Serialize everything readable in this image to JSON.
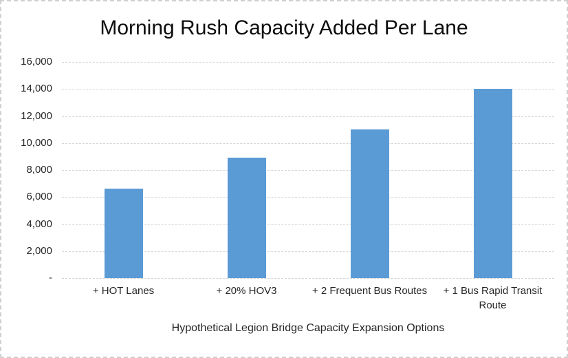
{
  "chart_data": {
    "type": "bar",
    "title": "Morning Rush Capacity Added Per Lane",
    "categories": [
      "+ HOT Lanes",
      "+ 20% HOV3",
      "+ 2 Frequent Bus Routes",
      "+ 1 Bus Rapid Transit Route"
    ],
    "values": [
      6600,
      8900,
      11000,
      14000
    ],
    "xlabel": "Hypothetical Legion Bridge Capacity Expansion Options",
    "ylabel": "",
    "ylim": [
      0,
      16000
    ],
    "ytick_step": 2000,
    "yticks": [
      {
        "value": 16000,
        "label": "16,000"
      },
      {
        "value": 14000,
        "label": "14,000"
      },
      {
        "value": 12000,
        "label": "12,000"
      },
      {
        "value": 10000,
        "label": "10,000"
      },
      {
        "value": 8000,
        "label": "8,000"
      },
      {
        "value": 6000,
        "label": "6,000"
      },
      {
        "value": 4000,
        "label": "4,000"
      },
      {
        "value": 2000,
        "label": "2,000"
      },
      {
        "value": 0,
        "label": "-"
      }
    ],
    "grid": true,
    "legend": false,
    "bar_color": "#5B9BD5",
    "gridline_color": "#D6D6D6",
    "border_color": "#CFCFCF",
    "text_color": "#262626",
    "title_color": "#0D0D0D"
  }
}
